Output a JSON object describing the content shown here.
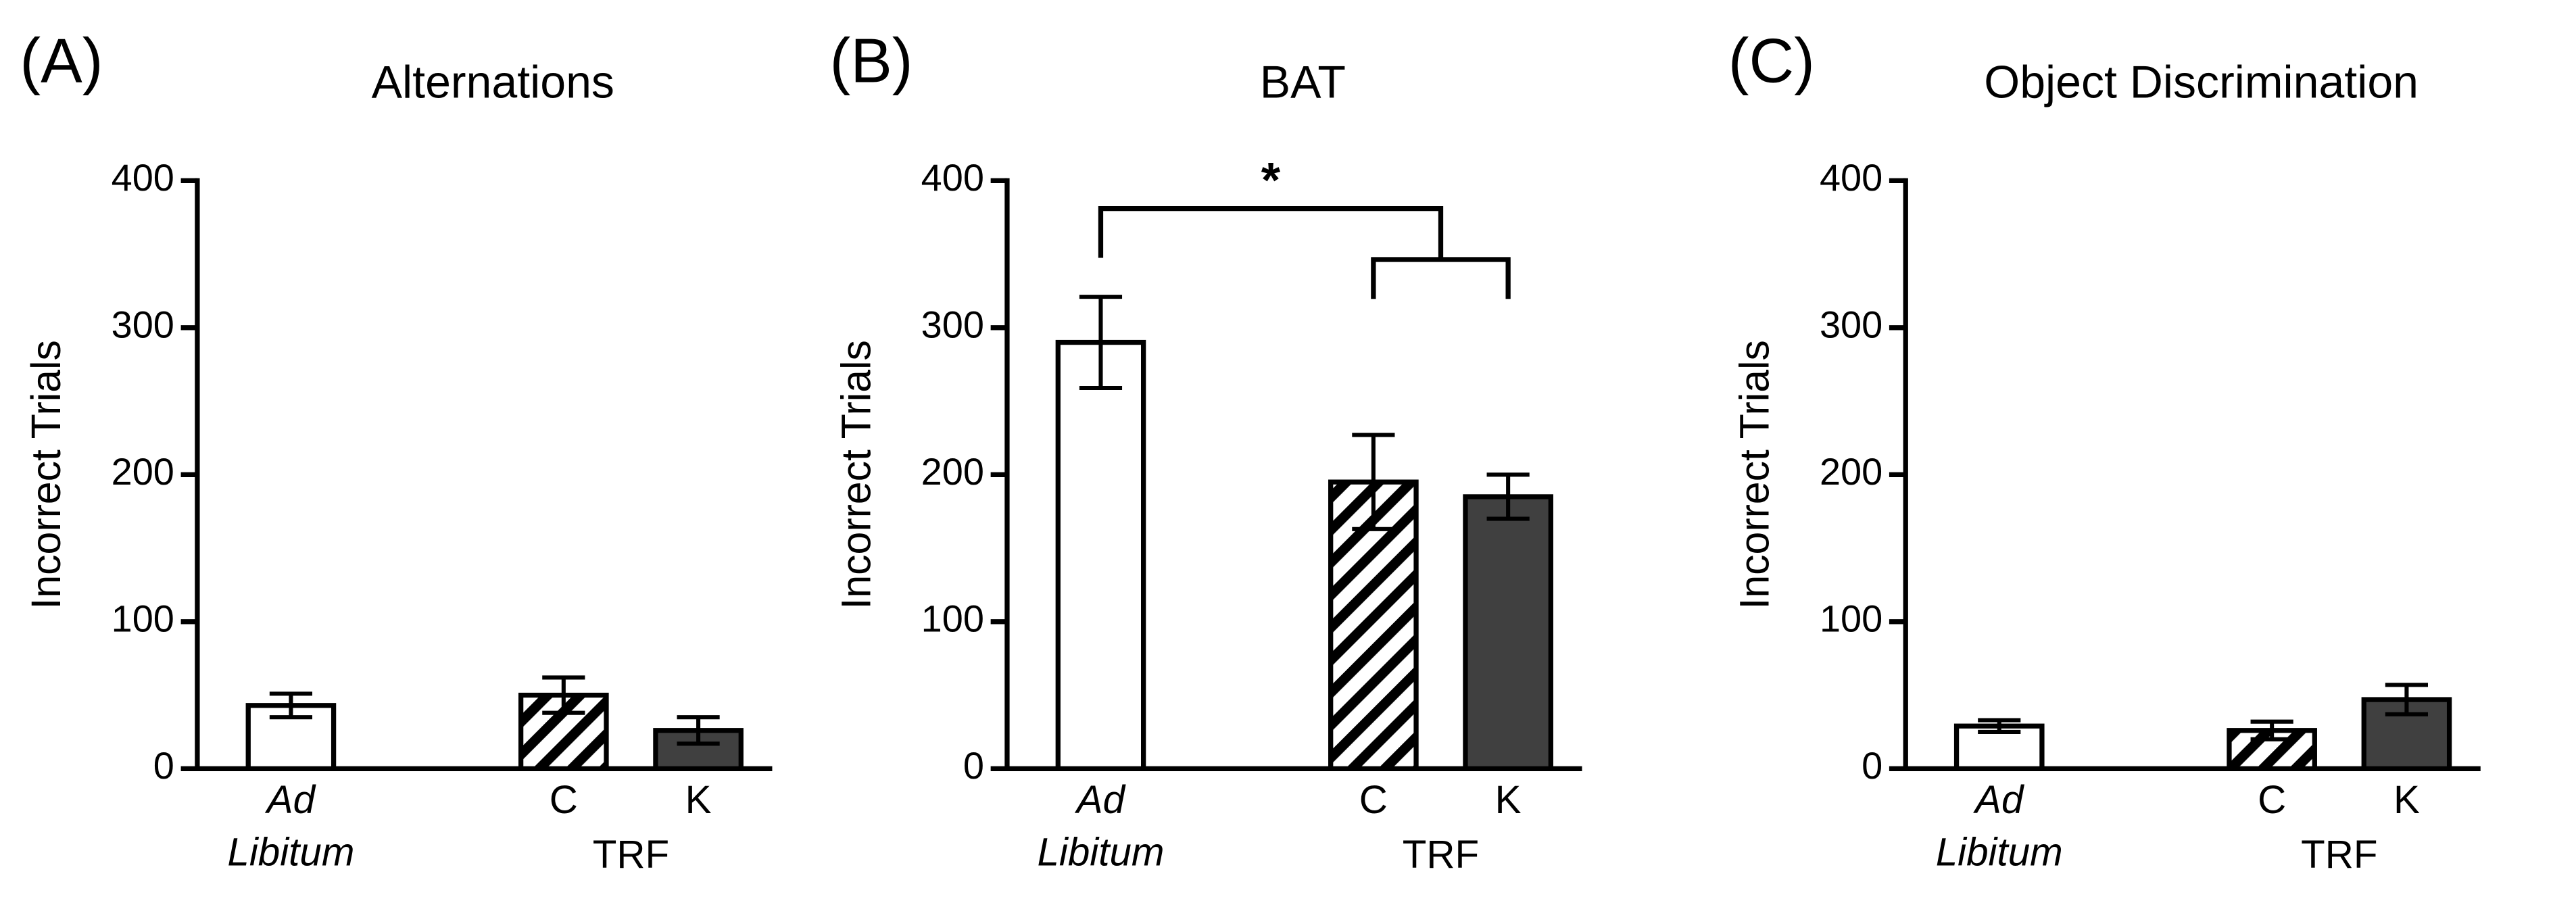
{
  "chart_data": [
    {
      "type": "bar",
      "panel_label": "(A)",
      "title": "Alternations",
      "y_label": "Incorrect Trials",
      "categories": [
        "Ad Libitum",
        "C",
        "K"
      ],
      "group_label": "TRF",
      "values": [
        43,
        50,
        26
      ],
      "errors": [
        8,
        12,
        9
      ],
      "colors": [
        "#ffffff",
        "#ffffff",
        "#404040"
      ],
      "hatch": [
        false,
        true,
        false
      ],
      "ylim": [
        0,
        400
      ],
      "yticks": [
        0,
        100,
        200,
        300,
        400
      ]
    },
    {
      "type": "bar",
      "panel_label": "(B)",
      "title": "BAT",
      "y_label": "Incorrect Trials",
      "categories": [
        "Ad Libitum",
        "C",
        "K"
      ],
      "group_label": "TRF",
      "values": [
        290,
        195,
        185
      ],
      "errors": [
        31,
        32,
        15
      ],
      "colors": [
        "#ffffff",
        "#ffffff",
        "#404040"
      ],
      "hatch": [
        false,
        true,
        false
      ],
      "ylim": [
        0,
        400
      ],
      "yticks": [
        0,
        100,
        200,
        300,
        400
      ],
      "annotation": "*"
    },
    {
      "type": "bar",
      "panel_label": "(C)",
      "title": "Object Discrimination",
      "y_label": "Incorrect Trials",
      "categories": [
        "Ad Libitum",
        "C",
        "K"
      ],
      "group_label": "TRF",
      "values": [
        29,
        26,
        47
      ],
      "errors": [
        4,
        6,
        10
      ],
      "colors": [
        "#ffffff",
        "#ffffff",
        "#404040"
      ],
      "hatch": [
        false,
        true,
        false
      ],
      "ylim": [
        0,
        400
      ],
      "yticks": [
        0,
        100,
        200,
        300,
        400
      ]
    }
  ]
}
